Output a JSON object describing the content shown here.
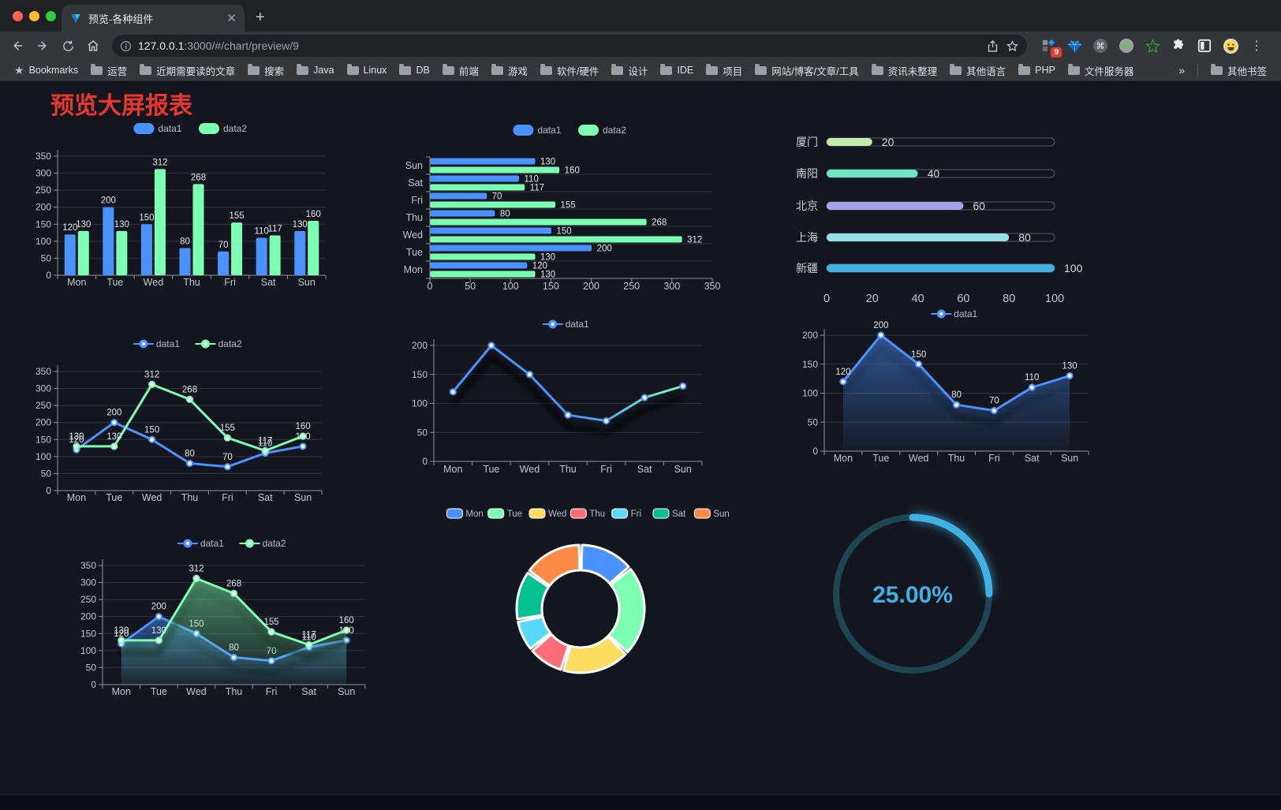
{
  "browser": {
    "tab_title": "预览-各种组件",
    "url_host": "127.0.0.1",
    "url_rest": ":3000/#/chart/preview/9",
    "bookmarks_label": "Bookmarks",
    "bookmark_folders": [
      "运营",
      "近期需要读的文章",
      "搜索",
      "Java",
      "Linux",
      "DB",
      "前端",
      "游戏",
      "软件/硬件",
      "设计",
      "IDE",
      "项目",
      "网站/博客/文章/工具",
      "资讯未整理",
      "其他语言",
      "PHP",
      "文件服务器"
    ],
    "bookmarks_overflow": "»",
    "other_bookmarks": "其他书签",
    "extension_badge": "9"
  },
  "page": {
    "title": "预览大屏报表",
    "title_color": "#e8372c",
    "background": "#14161f"
  },
  "chart_data": [
    {
      "id": "bar-vertical",
      "type": "bar",
      "categories": [
        "Mon",
        "Tue",
        "Wed",
        "Thu",
        "Fri",
        "Sat",
        "Sun"
      ],
      "series": [
        {
          "name": "data1",
          "color": "#4992ff",
          "values": [
            120,
            200,
            150,
            80,
            70,
            110,
            130
          ]
        },
        {
          "name": "data2",
          "color": "#7cffb2",
          "values": [
            130,
            130,
            312,
            268,
            155,
            117,
            160
          ]
        }
      ],
      "ylim": [
        0,
        350
      ],
      "ytick": 50,
      "legend_position": "top",
      "grid": true,
      "labels": true
    },
    {
      "id": "bar-horizontal",
      "type": "hbar",
      "categories": [
        "Mon",
        "Tue",
        "Wed",
        "Thu",
        "Fri",
        "Sat",
        "Sun"
      ],
      "series": [
        {
          "name": "data1",
          "color": "#4992ff",
          "values": [
            120,
            200,
            150,
            80,
            70,
            110,
            130
          ]
        },
        {
          "name": "data2",
          "color": "#7cffb2",
          "values": [
            130,
            130,
            312,
            268,
            155,
            117,
            160
          ]
        }
      ],
      "xlim": [
        0,
        350
      ],
      "xtick": 50,
      "legend_position": "top",
      "labels": true
    },
    {
      "id": "progress-bars",
      "type": "progress",
      "items": [
        {
          "label": "厦门",
          "value": 20,
          "color": "#c4ebad"
        },
        {
          "label": "南阳",
          "value": 40,
          "color": "#6be6c1"
        },
        {
          "label": "北京",
          "value": 60,
          "color": "#a0a7e6"
        },
        {
          "label": "上海",
          "value": 80,
          "color": "#96dee8"
        },
        {
          "label": "新疆",
          "value": 100,
          "color": "#3fb1e3"
        }
      ],
      "xlim": [
        0,
        100
      ],
      "xticks": [
        0,
        20,
        40,
        60,
        80,
        100
      ]
    },
    {
      "id": "line-basic",
      "type": "line",
      "categories": [
        "Mon",
        "Tue",
        "Wed",
        "Thu",
        "Fri",
        "Sat",
        "Sun"
      ],
      "series": [
        {
          "name": "data1",
          "color": "#4992ff",
          "values": [
            120,
            200,
            150,
            80,
            70,
            110,
            130
          ]
        },
        {
          "name": "data2",
          "color": "#7cffb2",
          "values": [
            130,
            130,
            312,
            268,
            155,
            117,
            160
          ]
        }
      ],
      "ylim": [
        0,
        350
      ],
      "ytick": 50,
      "legend_position": "top",
      "labels": true
    },
    {
      "id": "line-gradient",
      "type": "line",
      "categories": [
        "Mon",
        "Tue",
        "Wed",
        "Thu",
        "Fri",
        "Sat",
        "Sun"
      ],
      "series": [
        {
          "name": "data1",
          "color": "#4992ff",
          "values": [
            120,
            200,
            150,
            80,
            70,
            110,
            130
          ]
        }
      ],
      "gradient_stroke": [
        "#4992ff",
        "#7cffb2"
      ],
      "ylim": [
        0,
        200
      ],
      "ytick": 50,
      "legend_position": "top",
      "labels": false,
      "shadow": true
    },
    {
      "id": "area-basic",
      "type": "line",
      "categories": [
        "Mon",
        "Tue",
        "Wed",
        "Thu",
        "Fri",
        "Sat",
        "Sun"
      ],
      "series": [
        {
          "name": "data1",
          "color": "#4992ff",
          "values": [
            120,
            200,
            150,
            80,
            70,
            110,
            130
          ],
          "area": true
        }
      ],
      "ylim": [
        0,
        200
      ],
      "ytick": 50,
      "legend_position": "top",
      "labels": true,
      "shadow": true
    },
    {
      "id": "line-area",
      "type": "line",
      "categories": [
        "Mon",
        "Tue",
        "Wed",
        "Thu",
        "Fri",
        "Sat",
        "Sun"
      ],
      "series": [
        {
          "name": "data1",
          "color": "#4992ff",
          "values": [
            120,
            200,
            150,
            80,
            70,
            110,
            130
          ],
          "area": true
        },
        {
          "name": "data2",
          "color": "#7cffb2",
          "values": [
            130,
            130,
            312,
            268,
            155,
            117,
            160
          ],
          "area": true
        }
      ],
      "ylim": [
        0,
        350
      ],
      "ytick": 50,
      "legend_position": "top",
      "labels": true,
      "shadow": true
    },
    {
      "id": "donut",
      "type": "donut",
      "slices": [
        {
          "name": "Mon",
          "value": 120,
          "color": "#4992ff"
        },
        {
          "name": "Tue",
          "value": 200,
          "color": "#7cffb2"
        },
        {
          "name": "Wed",
          "value": 150,
          "color": "#fddd60"
        },
        {
          "name": "Thu",
          "value": 80,
          "color": "#ff6e76"
        },
        {
          "name": "Fri",
          "value": 70,
          "color": "#58d9f9"
        },
        {
          "name": "Sat",
          "value": 110,
          "color": "#05c091"
        },
        {
          "name": "Sun",
          "value": 130,
          "color": "#ff8a45"
        }
      ],
      "legend_position": "top",
      "border_color": "#ffffff"
    },
    {
      "id": "gauge",
      "type": "gauge",
      "percent": 25,
      "value_label": "25.00%",
      "color": "#3fb1e3",
      "track_color": "#1d4553"
    }
  ]
}
